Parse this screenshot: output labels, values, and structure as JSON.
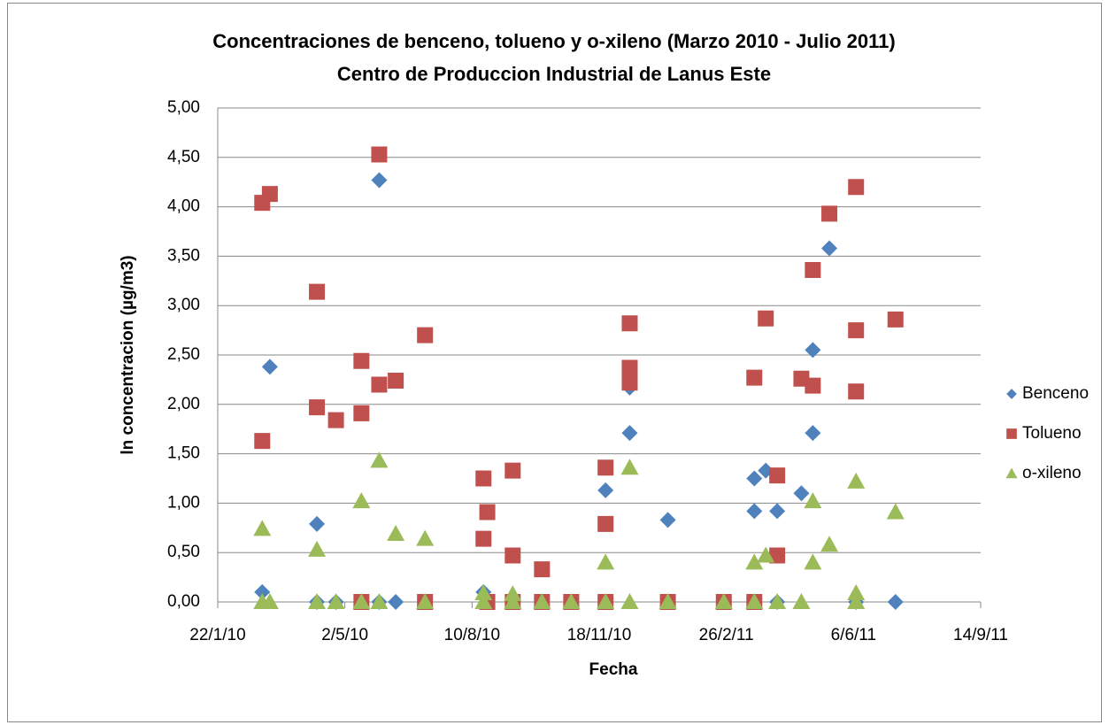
{
  "chart_data": {
    "type": "scatter",
    "title": "Concentraciones de benceno, tolueno y o-xileno (Marzo 2010 - Julio 2011)",
    "subtitle": "Centro de Produccion Industrial de Lanus Este",
    "x_label": "Fecha",
    "y_label": "ln concentracion (µg/m3)",
    "xlim": [
      "22/1/10",
      "14/9/11"
    ],
    "xticks": [
      "22/1/10",
      "2/5/10",
      "10/8/10",
      "18/11/10",
      "26/2/11",
      "6/6/11",
      "14/9/11"
    ],
    "ylim": [
      0,
      5
    ],
    "yticks": [
      {
        "value": 0,
        "label": "0,00"
      },
      {
        "value": 0.5,
        "label": "0,50"
      },
      {
        "value": 1,
        "label": "1,00"
      },
      {
        "value": 1.5,
        "label": "1,50"
      },
      {
        "value": 2,
        "label": "2,00"
      },
      {
        "value": 2.5,
        "label": "2,50"
      },
      {
        "value": 3,
        "label": "3,00"
      },
      {
        "value": 3.5,
        "label": "3,50"
      },
      {
        "value": 4,
        "label": "4,00"
      },
      {
        "value": 4.5,
        "label": "4,50"
      },
      {
        "value": 5,
        "label": "5,00"
      }
    ],
    "grid": true,
    "legend": "right",
    "series": [
      {
        "name": "Benceno",
        "color": "#4f81bd",
        "marker": "diamond",
        "x": [
          "26/2/10",
          "4/3/10",
          "10/4/10",
          "10/4/10",
          "25/4/10",
          "15/5/10",
          "29/5/10",
          "29/5/10",
          "11/6/10",
          "19/8/10",
          "22/8/10",
          "11/9/10",
          "4/10/10",
          "23/11/10",
          "23/11/10",
          "12/12/10",
          "12/12/10",
          "11/1/11",
          "11/1/11",
          "24/2/11",
          "20/3/11",
          "20/3/11",
          "29/3/11",
          "7/4/11",
          "7/4/11",
          "26/4/11",
          "5/5/11",
          "5/5/11",
          "18/5/11",
          "8/6/11",
          "9/7/11"
        ],
        "values": [
          0.1,
          2.38,
          0.79,
          0,
          0,
          0,
          4.27,
          0,
          0,
          0.1,
          0,
          0,
          0,
          1.13,
          0,
          1.71,
          2.17,
          0.83,
          0,
          0,
          1.25,
          0.92,
          1.33,
          0.92,
          0,
          1.1,
          2.55,
          1.71,
          3.58,
          0,
          0
        ]
      },
      {
        "name": "Tolueno",
        "color": "#c0504d",
        "marker": "square",
        "x": [
          "26/2/10",
          "4/3/10",
          "26/2/10",
          "10/4/10",
          "10/4/10",
          "25/4/10",
          "15/5/10",
          "15/5/10",
          "15/5/10",
          "29/5/10",
          "29/5/10",
          "11/6/10",
          "4/7/10",
          "4/7/10",
          "19/8/10",
          "22/8/10",
          "19/8/10",
          "22/8/10",
          "11/9/10",
          "11/9/10",
          "11/9/10",
          "4/10/10",
          "4/10/10",
          "27/10/10",
          "23/11/10",
          "23/11/10",
          "23/11/10",
          "12/12/10",
          "12/12/10",
          "12/12/10",
          "11/1/11",
          "24/2/11",
          "20/3/11",
          "20/3/11",
          "29/3/11",
          "7/4/11",
          "7/4/11",
          "26/4/11",
          "5/5/11",
          "5/5/11",
          "18/5/11",
          "8/6/11",
          "8/6/11",
          "8/6/11",
          "9/7/11"
        ],
        "values": [
          4.04,
          4.13,
          1.63,
          3.14,
          1.97,
          1.84,
          1.91,
          2.44,
          0,
          2.2,
          4.53,
          2.24,
          2.7,
          0,
          1.25,
          0.91,
          0.64,
          0,
          1.33,
          0.47,
          0,
          0.33,
          0,
          0,
          1.36,
          0.79,
          0,
          2.82,
          2.37,
          2.22,
          0,
          0,
          2.27,
          0,
          2.87,
          1.28,
          0.47,
          2.26,
          2.19,
          3.36,
          3.93,
          4.2,
          2.75,
          2.13,
          2.86
        ]
      },
      {
        "name": "o-xileno",
        "color": "#9bbb59",
        "marker": "triangle",
        "x": [
          "26/2/10",
          "26/2/10",
          "4/3/10",
          "10/4/10",
          "10/4/10",
          "25/4/10",
          "15/5/10",
          "15/5/10",
          "29/5/10",
          "29/5/10",
          "11/6/10",
          "4/7/10",
          "4/7/10",
          "19/8/10",
          "19/8/10",
          "11/9/10",
          "11/9/10",
          "4/10/10",
          "27/10/10",
          "23/11/10",
          "23/11/10",
          "12/12/10",
          "12/12/10",
          "11/1/11",
          "24/2/11",
          "20/3/11",
          "20/3/11",
          "29/3/11",
          "7/4/11",
          "26/4/11",
          "5/5/11",
          "5/5/11",
          "18/5/11",
          "8/6/11",
          "8/6/11",
          "8/6/11",
          "9/7/11"
        ],
        "values": [
          0.74,
          0,
          0,
          0.53,
          0,
          0,
          1.02,
          0,
          1.43,
          0,
          0.69,
          0.64,
          0,
          0.09,
          0,
          0.08,
          0,
          0,
          0,
          0.4,
          0,
          1.36,
          0,
          0,
          0,
          0.4,
          0,
          0.47,
          0,
          0,
          1.02,
          0.4,
          0.58,
          1.22,
          0.09,
          0,
          0.91
        ]
      }
    ]
  }
}
